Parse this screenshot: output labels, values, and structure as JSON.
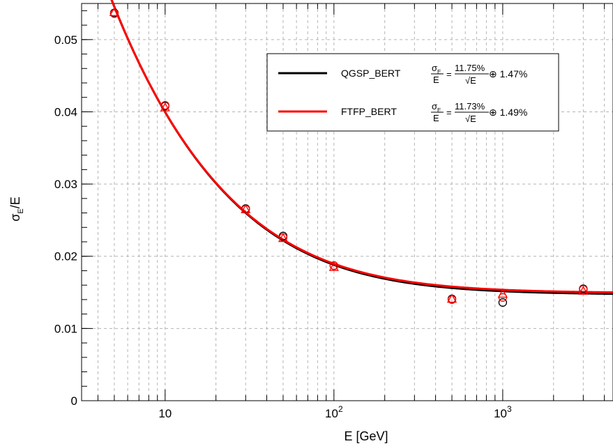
{
  "chart_data": {
    "type": "scatter",
    "xlabel": "E [GeV]",
    "ylabel_main": "σ",
    "ylabel_sub": "E",
    "ylabel_tail": "/E",
    "xscale": "log",
    "xlim": [
      3.2,
      4500
    ],
    "ylim": [
      0,
      0.055
    ],
    "grid": true,
    "x_ticks": [
      {
        "value": 10,
        "base": "10",
        "exp": ""
      },
      {
        "value": 100,
        "base": "10",
        "exp": "2"
      },
      {
        "value": 1000,
        "base": "10",
        "exp": "3"
      }
    ],
    "y_ticks": [
      {
        "value": 0,
        "label": "0"
      },
      {
        "value": 0.01,
        "label": "0.01"
      },
      {
        "value": 0.02,
        "label": "0.02"
      },
      {
        "value": 0.03,
        "label": "0.03"
      },
      {
        "value": 0.04,
        "label": "0.04"
      },
      {
        "value": 0.05,
        "label": "0.05"
      }
    ],
    "series": [
      {
        "name": "QGSP_BERT",
        "color": "#000000",
        "marker": "circle",
        "x": [
          5,
          10,
          30,
          50,
          100,
          500,
          1000,
          3000
        ],
        "y": [
          0.0537,
          0.0408,
          0.0266,
          0.0228,
          0.0187,
          0.0141,
          0.0136,
          0.0155
        ],
        "fit": {
          "stochastic": 0.1175,
          "constant": 0.0147
        }
      },
      {
        "name": "FTFP_BERT",
        "color": "#ff0000",
        "marker": "circle",
        "x": [
          5,
          10,
          30,
          50,
          100,
          500,
          1000,
          3000
        ],
        "y": [
          0.0536,
          0.0409,
          0.0265,
          0.0226,
          0.0187,
          0.014,
          0.0143,
          0.0154
        ],
        "fit": {
          "stochastic": 0.1173,
          "constant": 0.0149
        }
      },
      {
        "name": "",
        "color": "#ff0000",
        "marker": "triangle",
        "x": [
          5,
          10,
          30,
          50,
          100,
          500,
          1000,
          3000
        ],
        "y": [
          0.0538,
          0.0406,
          0.0265,
          0.0225,
          0.0185,
          0.0141,
          0.0148,
          0.0152
        ]
      }
    ],
    "legend": [
      {
        "name": "QGSP_BERT",
        "color": "#000000",
        "formula_num": "σ",
        "formula_num_sub": "E",
        "formula_den": "E",
        "stoch": "11.75%",
        "sqrt_den": "√E",
        "const": "⊕ 1.47%"
      },
      {
        "name": "FTFP_BERT",
        "color": "#ff0000",
        "formula_num": "σ",
        "formula_num_sub": "E",
        "formula_den": "E",
        "stoch": "11.73%",
        "sqrt_den": "√E",
        "const": "⊕ 1.49%"
      }
    ],
    "legend_position": "top-right"
  }
}
